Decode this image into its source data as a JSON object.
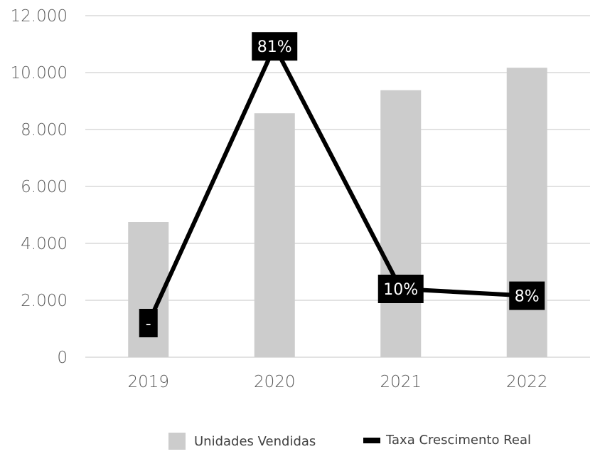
{
  "chart_data": {
    "type": "bar",
    "categories": [
      "2019",
      "2020",
      "2021",
      "2022"
    ],
    "y_ticks": [
      "0",
      "2.000",
      "4.000",
      "6.000",
      "8.000",
      "10.000",
      "12.000"
    ],
    "ylim": [
      0,
      12000
    ],
    "y2lim": [
      -10,
      90
    ],
    "grid": true,
    "legend_position": "bottom",
    "series": [
      {
        "name": "Unidades Vendidas",
        "type": "bar",
        "color": "#cccccc",
        "values": [
          4750,
          8570,
          9380,
          10170
        ]
      },
      {
        "name": "Taxa Crescimento Real",
        "type": "line",
        "axis": "secondary",
        "color": "#000000",
        "values": [
          null,
          81,
          10,
          8
        ],
        "plot_values": [
          0,
          81,
          10,
          8
        ],
        "data_labels": [
          "-",
          "81%",
          "10%",
          "8%"
        ]
      }
    ]
  }
}
